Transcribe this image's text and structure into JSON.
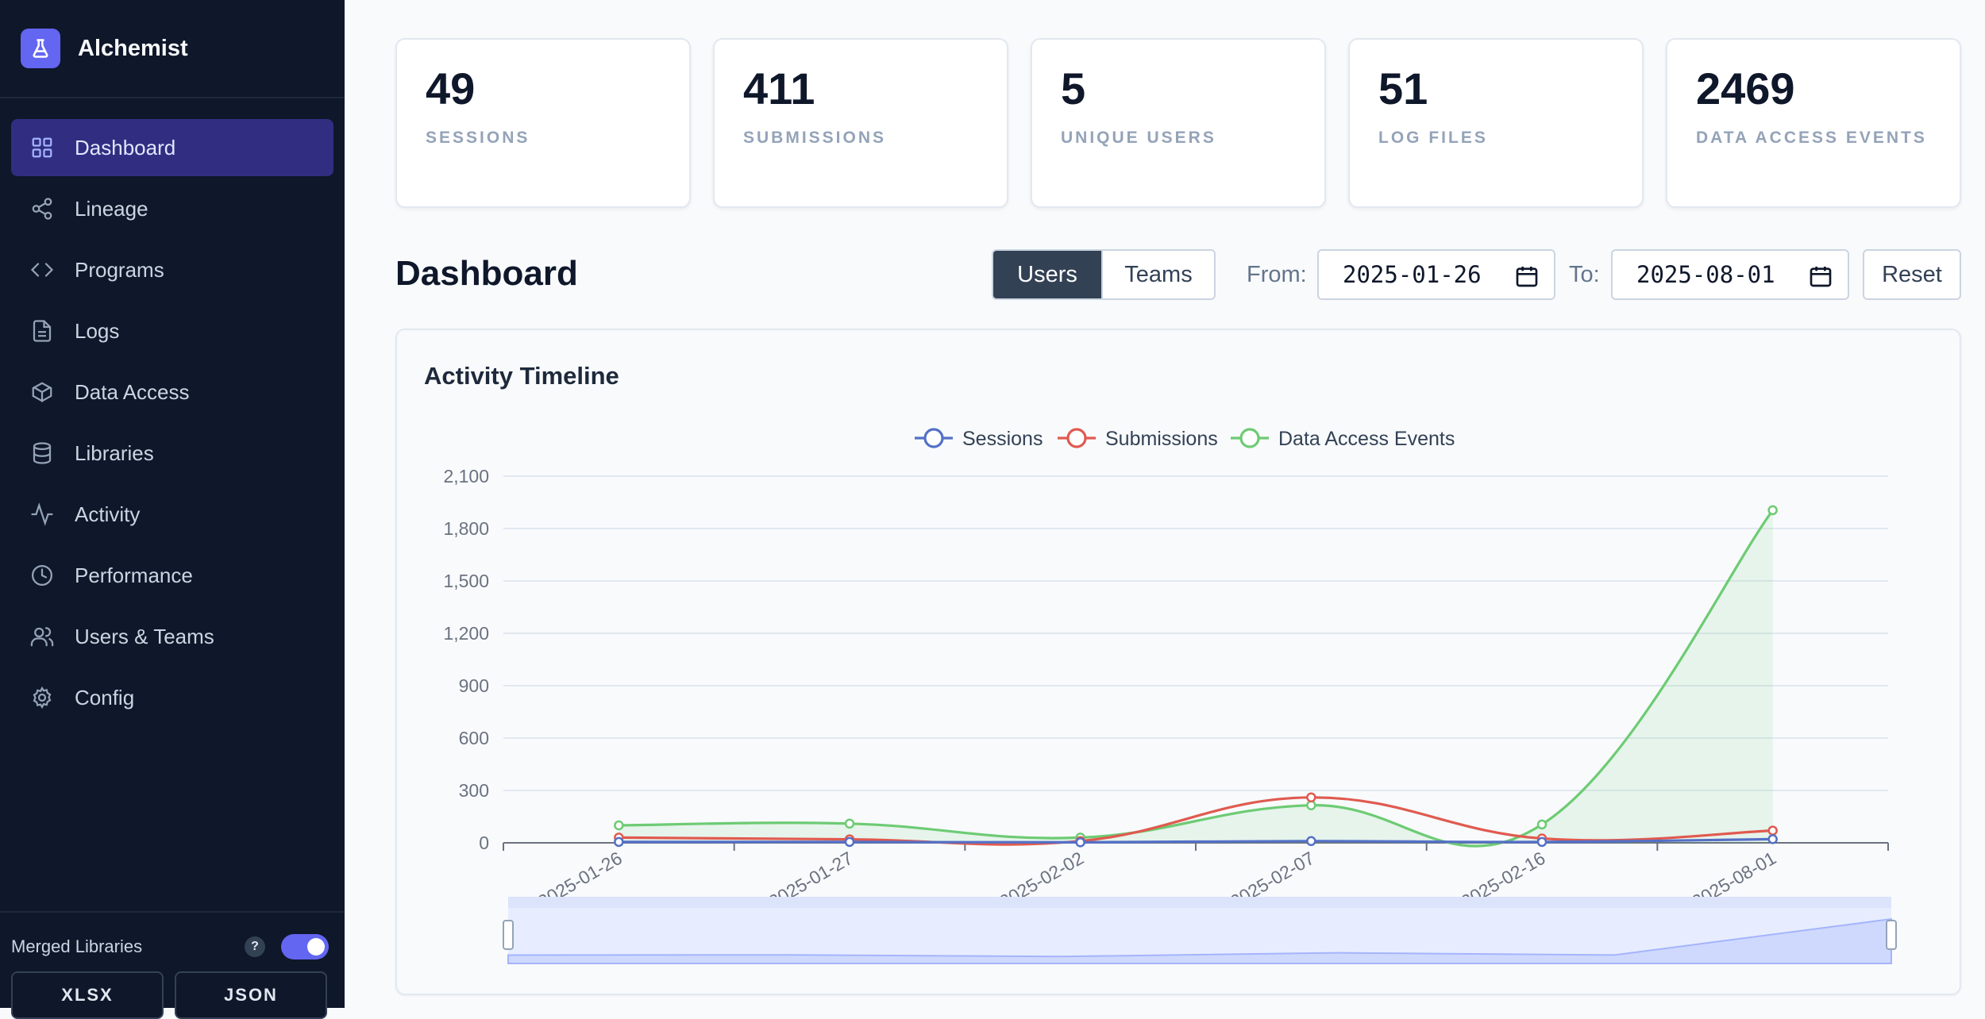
{
  "app": {
    "name": "Alchemist",
    "logo_icon": "flask-icon"
  },
  "sidebar": {
    "items": [
      {
        "label": "Dashboard",
        "icon": "grid-icon",
        "active": true
      },
      {
        "label": "Lineage",
        "icon": "share-icon",
        "active": false
      },
      {
        "label": "Programs",
        "icon": "code-icon",
        "active": false
      },
      {
        "label": "Logs",
        "icon": "file-text-icon",
        "active": false
      },
      {
        "label": "Data Access",
        "icon": "box-icon",
        "active": false
      },
      {
        "label": "Libraries",
        "icon": "database-icon",
        "active": false
      },
      {
        "label": "Activity",
        "icon": "activity-icon",
        "active": false
      },
      {
        "label": "Performance",
        "icon": "clock-icon",
        "active": false
      },
      {
        "label": "Users & Teams",
        "icon": "users-icon",
        "active": false
      },
      {
        "label": "Config",
        "icon": "gear-icon",
        "active": false
      }
    ],
    "merged_libraries": {
      "label": "Merged Libraries",
      "help": "?",
      "enabled": true
    },
    "exports": [
      "XLSX",
      "JSON"
    ]
  },
  "stats": [
    {
      "value": "49",
      "label": "SESSIONS"
    },
    {
      "value": "411",
      "label": "SUBMISSIONS"
    },
    {
      "value": "5",
      "label": "UNIQUE USERS"
    },
    {
      "value": "51",
      "label": "LOG FILES"
    },
    {
      "value": "2469",
      "label": "DATA ACCESS EVENTS"
    }
  ],
  "dashboard": {
    "title": "Dashboard",
    "view_toggle": {
      "options": [
        "Users",
        "Teams"
      ],
      "selected": "Users"
    },
    "from_label": "From:",
    "from_value": "2025-01-26",
    "to_label": "To:",
    "to_value": "2025-08-01",
    "reset_label": "Reset"
  },
  "colors": {
    "sessions": "#5470c6",
    "submissions": "#e05a4f",
    "data_access": "#6dcb73"
  },
  "chart_data": {
    "type": "line",
    "title": "Activity Timeline",
    "categories": [
      "2025-01-26",
      "2025-01-27",
      "2025-02-02",
      "2025-02-07",
      "2025-02-16",
      "2025-08-01"
    ],
    "series": [
      {
        "name": "Sessions",
        "values": [
          5,
          5,
          3,
          10,
          5,
          21
        ]
      },
      {
        "name": "Submissions",
        "values": [
          30,
          20,
          10,
          260,
          25,
          70
        ]
      },
      {
        "name": "Data Access Events",
        "values": [
          100,
          110,
          30,
          215,
          105,
          1905
        ]
      }
    ],
    "ylim": [
      0,
      2100
    ],
    "yticks": [
      "0",
      "300",
      "600",
      "900",
      "1,200",
      "1,500",
      "1,800",
      "2,100"
    ],
    "legend_position": "top",
    "grid": true,
    "smooth": true,
    "data_zoom": true
  }
}
